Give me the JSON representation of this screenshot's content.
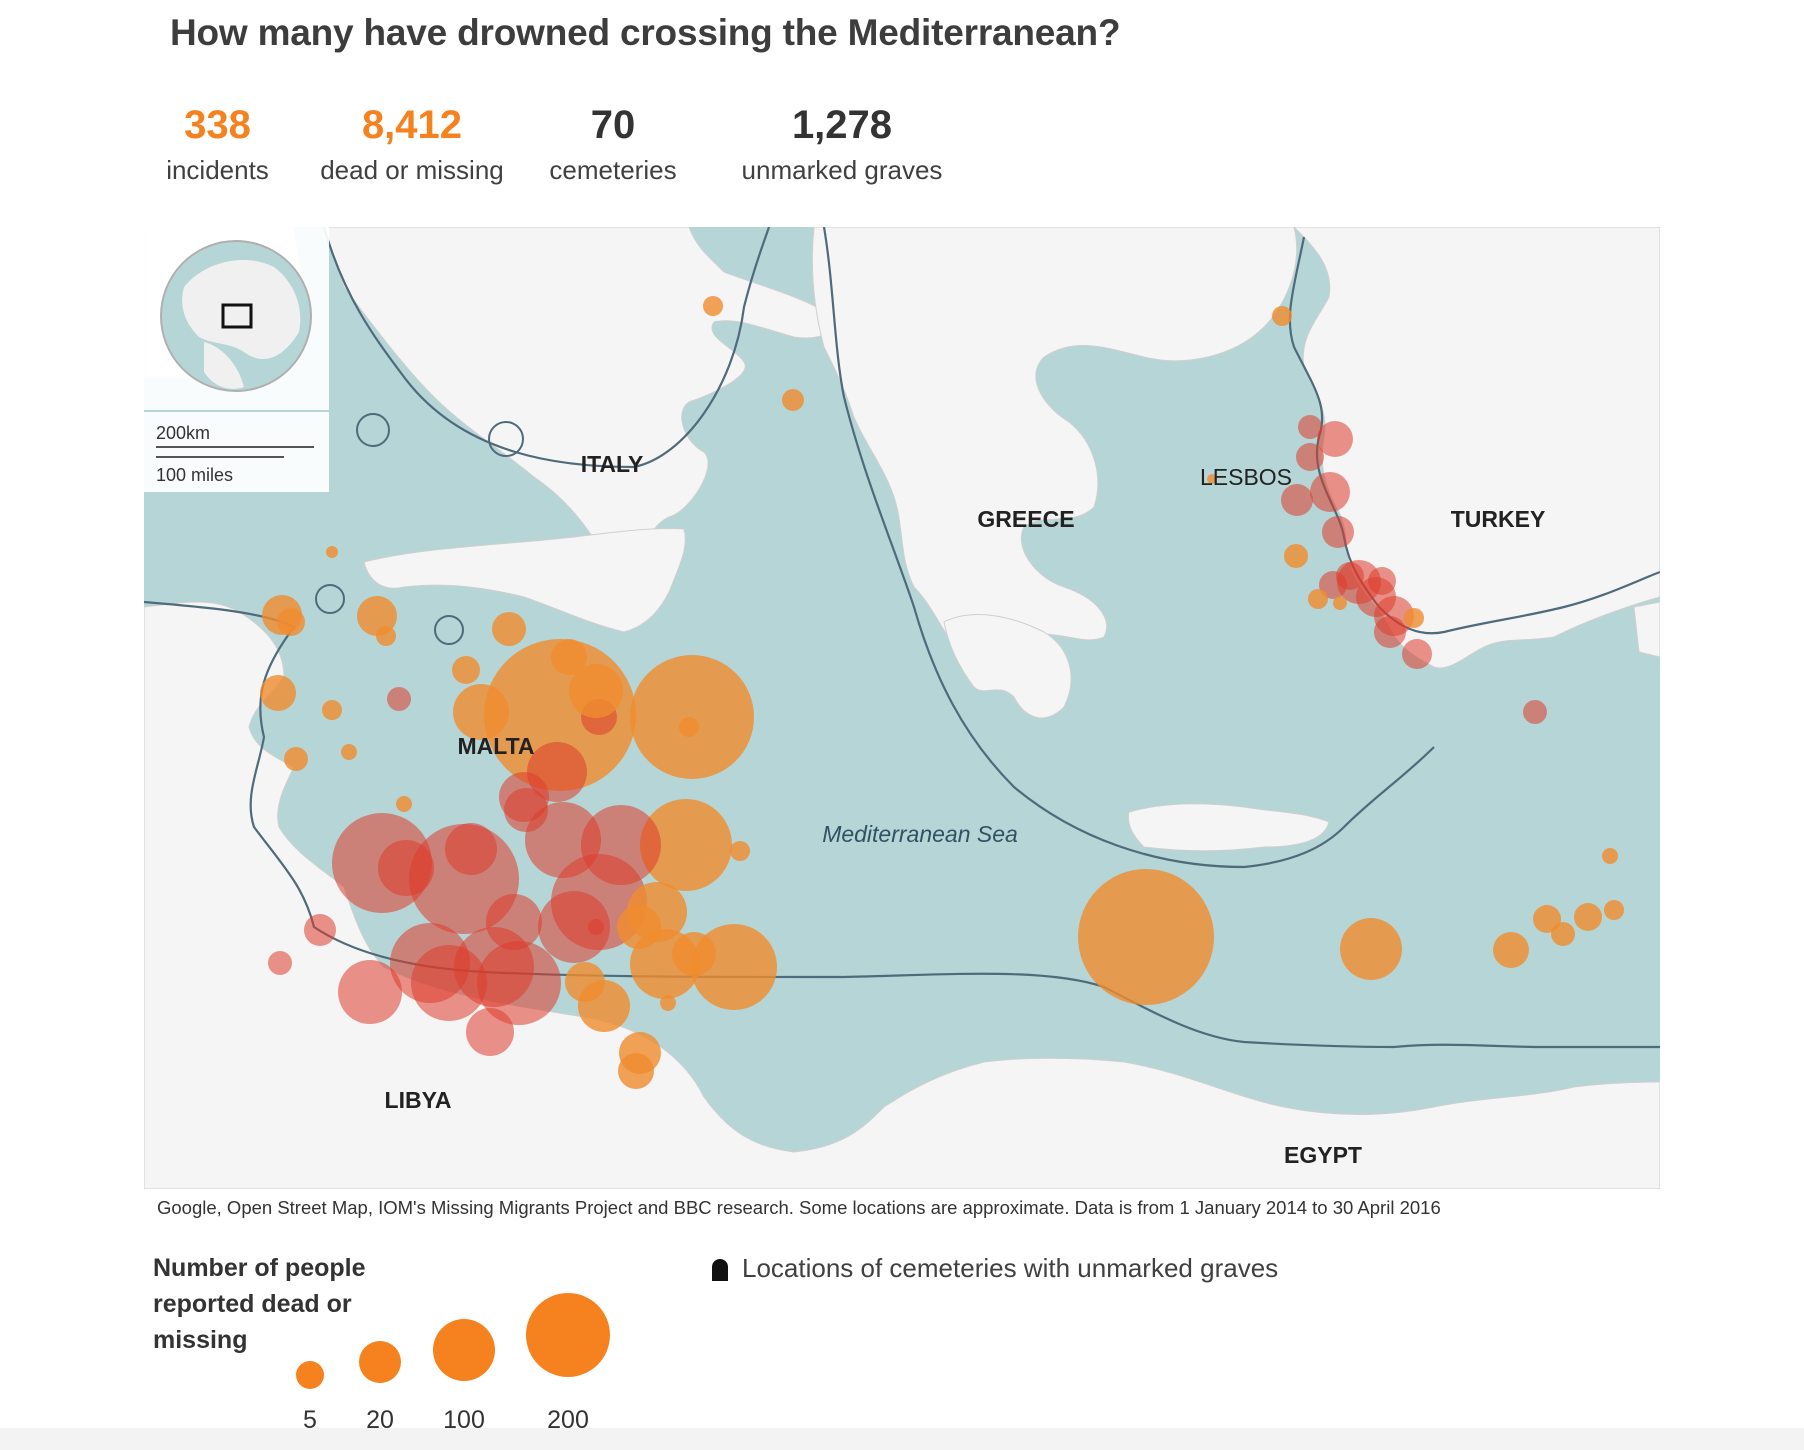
{
  "title": "How many have drowned crossing the Mediterranean?",
  "stats": [
    {
      "value": "338",
      "label": "incidents",
      "color": "#f5821f"
    },
    {
      "value": "8,412",
      "label": "dead or missing",
      "color": "#f5821f"
    },
    {
      "value": "70",
      "label": "cemeteries",
      "color": "#333333"
    },
    {
      "value": "1,278",
      "label": "unmarked graves",
      "color": "#333333"
    }
  ],
  "map": {
    "colors": {
      "sea": "#b6d5d6",
      "land": "#f5f5f5",
      "border": "#4f6a7a",
      "bubble": "#f08c2e",
      "bubble_dense": "#dc3c2c"
    },
    "labels": {
      "italy": "ITALY",
      "greece": "GREECE",
      "lesbos": "LESBOS",
      "turkey": "TURKEY",
      "malta": "MALTA",
      "libya": "LIBYA",
      "egypt": "EGYPT",
      "sea": "Mediterranean Sea"
    },
    "scale": {
      "km": "200km",
      "miles": "100 miles"
    }
  },
  "source": "Google, Open Street Map, IOM's Missing Migrants Project and BBC research. Some locations are approximate. Data is from 1 January 2014 to 30 April 2016",
  "legend": {
    "title": "Number of people reported dead or missing",
    "sizes": [
      "5",
      "20",
      "100",
      "200"
    ],
    "cemeteries": "Locations of cemeteries with unmarked graves",
    "cemetery_icon": "gravestone-icon"
  }
}
